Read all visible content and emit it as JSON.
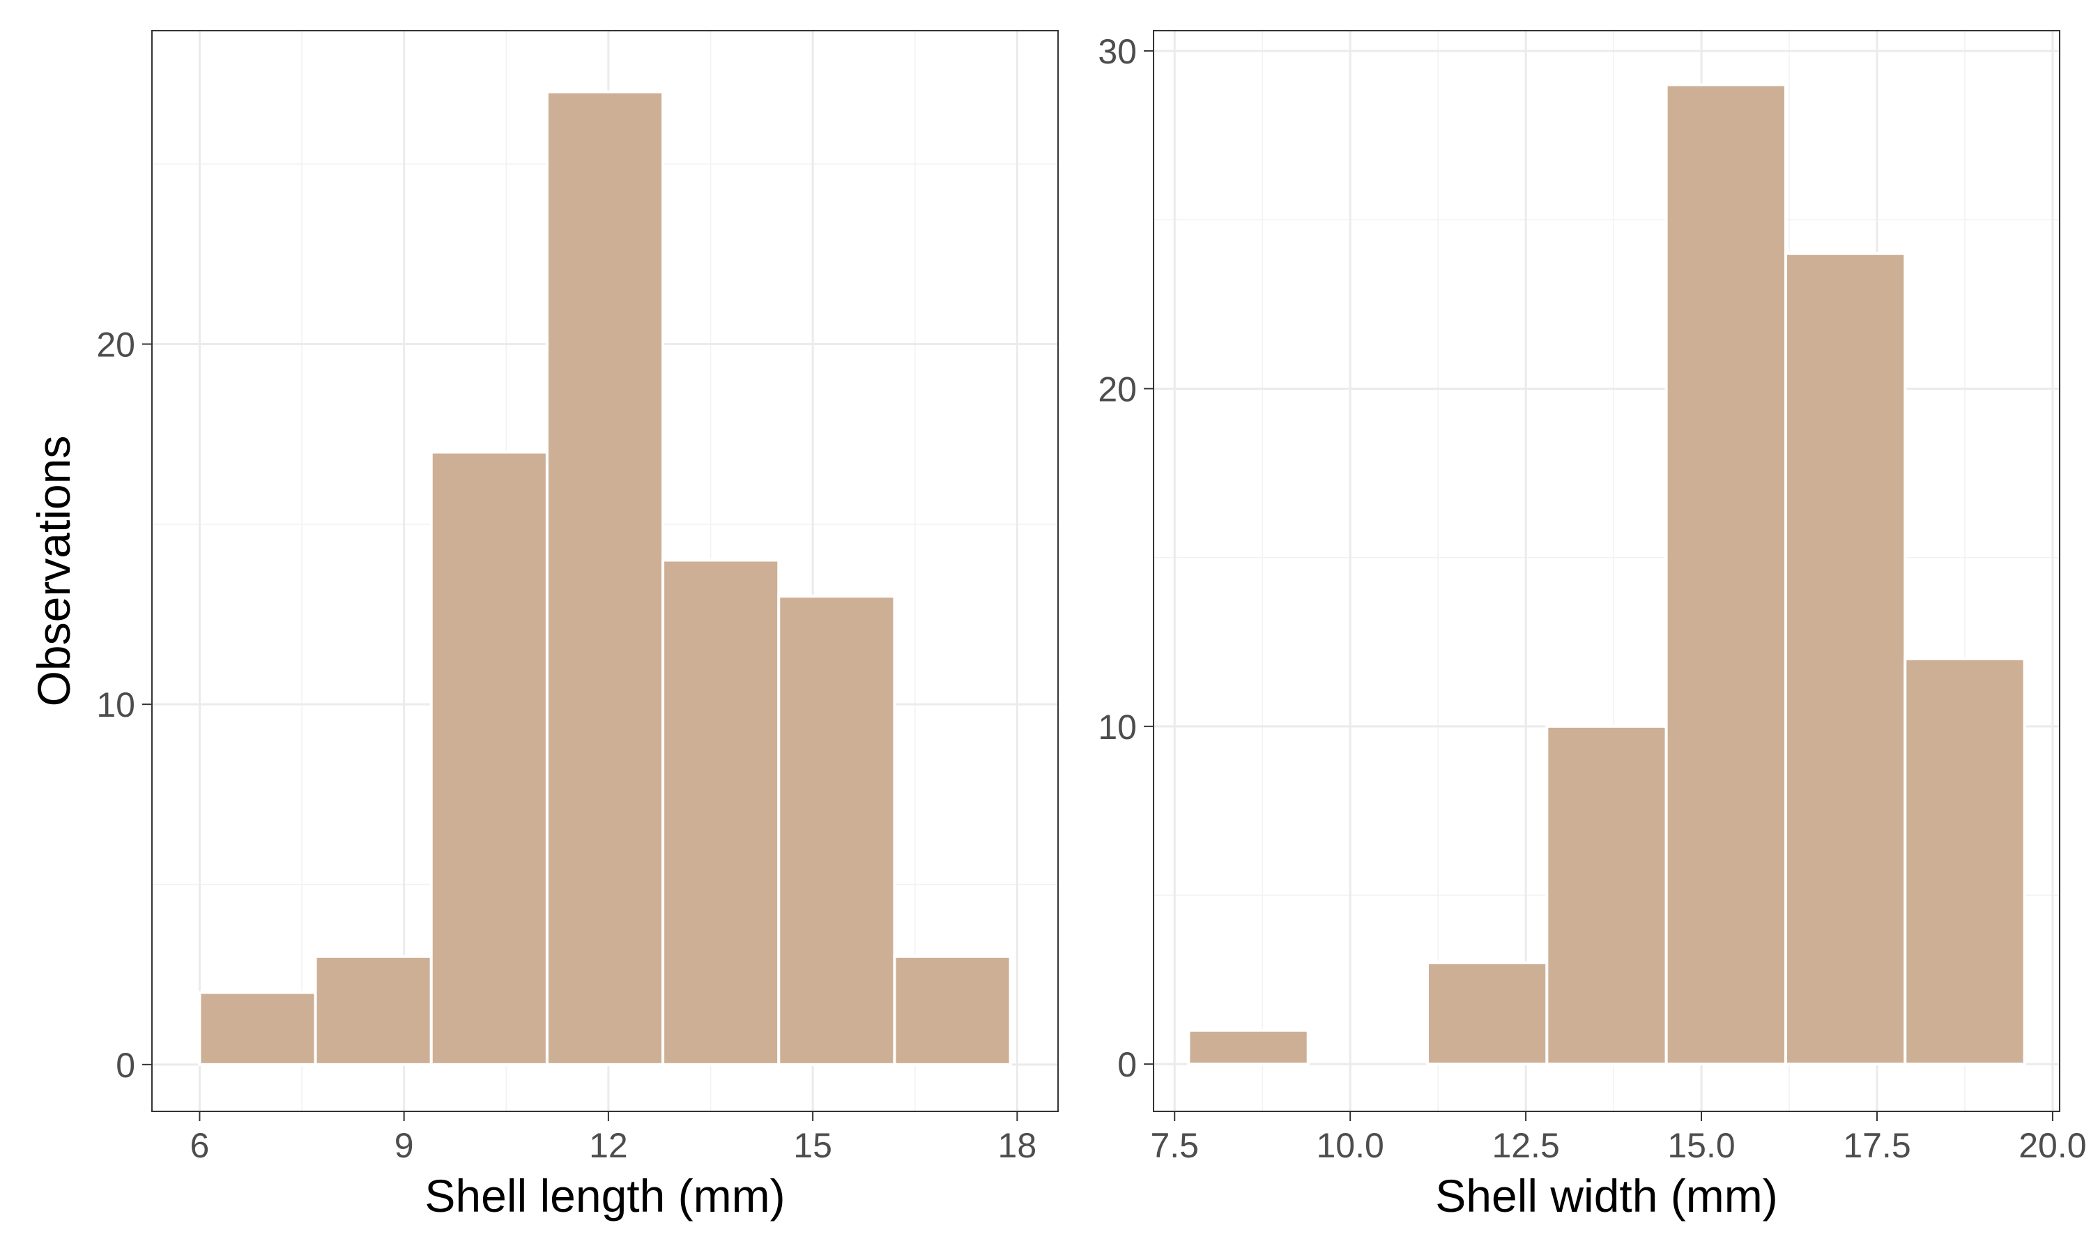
{
  "chart_data": [
    {
      "type": "bar",
      "subtype": "histogram",
      "xlabel": "Shell length (mm)",
      "ylabel": "Observations",
      "xlim": [
        5.3,
        18.6
      ],
      "ylim": [
        -1.3,
        28.7
      ],
      "xticks": [
        6,
        9,
        12,
        15,
        18
      ],
      "xtick_labels": [
        "6",
        "9",
        "12",
        "15",
        "18"
      ],
      "yticks": [
        0,
        10,
        20
      ],
      "ytick_labels": [
        "0",
        "10",
        "20"
      ],
      "bins": [
        {
          "start": 6.0,
          "end": 7.7,
          "count": 2
        },
        {
          "start": 7.7,
          "end": 9.4,
          "count": 3
        },
        {
          "start": 9.4,
          "end": 11.1,
          "count": 17
        },
        {
          "start": 11.1,
          "end": 12.8,
          "count": 27
        },
        {
          "start": 12.8,
          "end": 14.5,
          "count": 14
        },
        {
          "start": 14.5,
          "end": 16.2,
          "count": 13
        },
        {
          "start": 16.2,
          "end": 17.9,
          "count": 3
        }
      ],
      "bar_color": "#CDAF95",
      "grid": true,
      "legend": "none"
    },
    {
      "type": "bar",
      "subtype": "histogram",
      "xlabel": "Shell width (mm)",
      "ylabel": "",
      "xlim": [
        7.2,
        20.1
      ],
      "ylim": [
        -1.4,
        30.6
      ],
      "xticks": [
        7.5,
        10.0,
        12.5,
        15.0,
        17.5,
        20.0
      ],
      "xtick_labels": [
        "7.5",
        "10.0",
        "12.5",
        "15.0",
        "17.5",
        "20.0"
      ],
      "yticks": [
        0,
        10,
        20,
        30
      ],
      "ytick_labels": [
        "0",
        "10",
        "20",
        "30"
      ],
      "bins": [
        {
          "start": 7.7,
          "end": 9.4,
          "count": 1
        },
        {
          "start": 9.4,
          "end": 11.1,
          "count": 0
        },
        {
          "start": 11.1,
          "end": 12.8,
          "count": 3
        },
        {
          "start": 12.8,
          "end": 14.5,
          "count": 10
        },
        {
          "start": 14.5,
          "end": 16.2,
          "count": 29
        },
        {
          "start": 16.2,
          "end": 17.9,
          "count": 24
        },
        {
          "start": 17.9,
          "end": 19.6,
          "count": 12
        }
      ],
      "bar_color": "#CDAF95",
      "grid": true,
      "legend": "none"
    }
  ]
}
